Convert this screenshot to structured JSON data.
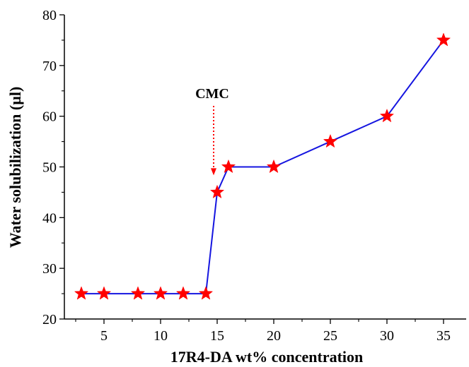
{
  "chart_data": {
    "type": "line",
    "xlabel": "17R4-DA wt% concentration",
    "ylabel": "Water solubilization (µl)",
    "xlim": [
      1.5,
      37
    ],
    "ylim": [
      20,
      80
    ],
    "xticks": [
      5,
      10,
      15,
      20,
      25,
      30,
      35
    ],
    "yticks": [
      20,
      30,
      40,
      50,
      60,
      70,
      80
    ],
    "grid": false,
    "line_color": "#1515e0",
    "marker": "star",
    "marker_color": "#ff0000",
    "series": [
      {
        "x": [
          3,
          5,
          8,
          10,
          12,
          14,
          15,
          16,
          20,
          25,
          30,
          35
        ],
        "y": [
          25,
          25,
          25,
          25,
          25,
          25,
          45,
          50,
          50,
          55,
          60,
          75
        ]
      }
    ],
    "annotations": [
      {
        "text": "CMC",
        "x": 15,
        "y": 45,
        "arrow": "dotted",
        "color": "#ff0000"
      }
    ]
  }
}
